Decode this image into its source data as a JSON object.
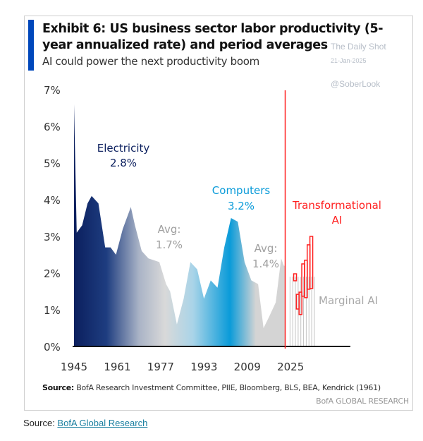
{
  "chart_data": {
    "type": "area",
    "title": "Exhibit 6: US business sector labor productivity (5-year annualized rate) and period averages",
    "subtitle": "AI could power the next productivity boom",
    "xlabel": "",
    "ylabel": "",
    "xlim": [
      1945,
      2040
    ],
    "ylim": [
      0,
      7
    ],
    "y_ticks": [
      "0%",
      "1%",
      "2%",
      "3%",
      "4%",
      "5%",
      "6%",
      "7%"
    ],
    "x_ticks": [
      "1945",
      "1961",
      "1977",
      "1993",
      "2009",
      "2025"
    ],
    "grid": false,
    "historical": {
      "x": [
        1945,
        1946,
        1948,
        1950,
        1951.5,
        1954,
        1956.5,
        1958.5,
        1960.5,
        1963,
        1966,
        1967.5,
        1970,
        1972.5,
        1976.5,
        1979,
        1980.5,
        1983,
        1985.5,
        1988,
        1990.5,
        1993,
        1995.5,
        1998,
        2000.5,
        2003,
        2005.5,
        2008,
        2010.5,
        2013,
        2015,
        2017,
        2019.5,
        2021.5,
        2022.5,
        2023
      ],
      "y": [
        6.6,
        3.1,
        3.3,
        3.9,
        4.1,
        3.9,
        2.7,
        2.7,
        2.5,
        3.2,
        3.8,
        3.3,
        2.6,
        2.4,
        2.3,
        1.7,
        1.5,
        0.6,
        1.3,
        2.3,
        2.1,
        1.3,
        1.8,
        1.6,
        2.7,
        3.5,
        3.4,
        2.3,
        1.8,
        1.7,
        0.5,
        0.8,
        1.2,
        2.4,
        2.2,
        2.2
      ]
    },
    "marginal_ai": {
      "x": [
        2024,
        2025,
        2026,
        2027,
        2028,
        2029,
        2030,
        2031,
        2032,
        2033
      ],
      "y": [
        1.9,
        1.9,
        1.9,
        1.9,
        1.9,
        1.9,
        1.9,
        1.9,
        1.9,
        1.9
      ]
    },
    "transformational_ai_ranges": [
      {
        "x": 2026,
        "low": 1.79,
        "high": 1.98
      },
      {
        "x": 2027,
        "low": 1.02,
        "high": 1.42
      },
      {
        "x": 2028,
        "low": 0.87,
        "high": 1.48
      },
      {
        "x": 2029,
        "low": 1.37,
        "high": 2.25
      },
      {
        "x": 2030,
        "low": 1.33,
        "high": 2.35
      },
      {
        "x": 2031,
        "low": 1.56,
        "high": 2.77
      },
      {
        "x": 2032,
        "low": 1.58,
        "high": 3.0
      }
    ],
    "divider_year": 2023,
    "annotations": {
      "electricity": {
        "label": "Electricity",
        "value": "2.8%"
      },
      "avg1": {
        "label": "Avg:",
        "value": "1.7%"
      },
      "computers": {
        "label": "Computers",
        "value": "3.2%"
      },
      "avg2": {
        "label": "Avg:",
        "value": "1.4%"
      },
      "transformational": {
        "line1": "Transformational",
        "line2": "AI"
      },
      "marginal": "Marginal AI"
    },
    "colors": {
      "electricity": "#0b1f5e",
      "computers": "#0a9bd9",
      "gray": "#d4d4d4",
      "ai": "#ff2020",
      "marginal_lines": "#c4c4c4",
      "annotation_gray": "#a0a0a0"
    }
  },
  "watermark": {
    "line1": "The Daily Shot",
    "line2": "21-Jan-2025",
    "line3": "@SoberLook"
  },
  "source": {
    "label": "Source:",
    "text": " BofA Research Investment Committee, PIIE, Bloomberg, BLS, BEA, Kendrick (1961)"
  },
  "brand": "BofA GLOBAL RESEARCH",
  "footer": {
    "label": "Source: ",
    "link": "BofA Global Research"
  }
}
